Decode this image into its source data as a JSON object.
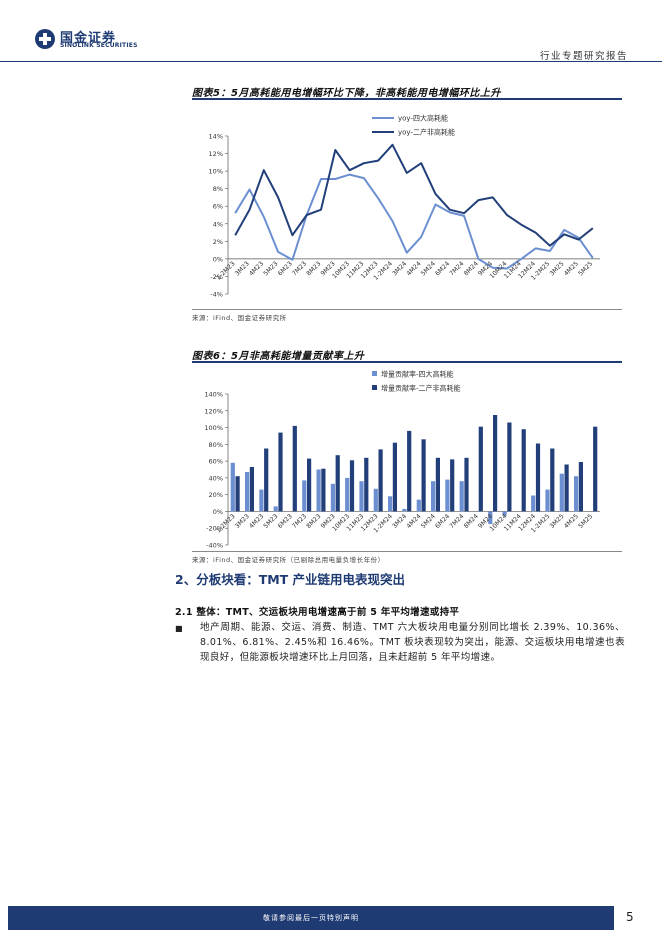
{
  "header": {
    "brand_cn": "国金证券",
    "brand_en": "SINOLINK SECURITIES",
    "report_type": "行业专题研究报告"
  },
  "figure5": {
    "title": "图表5：5月高耗能用电增幅环比下降，非高耗能用电增幅环比上升",
    "source": "来源：iFind、国金证券研究所"
  },
  "figure6": {
    "title": "图表6：5月非高耗能增量贡献率上升",
    "source": "来源：iFind、国金证券研究所（已剔除总用电量负增长年份）"
  },
  "chart_data": [
    {
      "type": "line",
      "categories": [
        "1-2M23",
        "3M23",
        "4M23",
        "5M23",
        "6M23",
        "7M23",
        "8M23",
        "9M23",
        "10M23",
        "11M23",
        "12M23",
        "1-2M24",
        "3M24",
        "4M24",
        "5M24",
        "6M24",
        "7M24",
        "8M24",
        "9M24",
        "10M24",
        "11M24",
        "12M24",
        "1-2M25",
        "3M25",
        "4M25",
        "5M25"
      ],
      "series": [
        {
          "name": "yoy-四大高耗能",
          "color": "#6b8fd0",
          "values": [
            5.2,
            7.9,
            4.8,
            0.8,
            -0.1,
            5.0,
            9.1,
            9.1,
            9.6,
            9.2,
            6.9,
            4.3,
            0.7,
            2.5,
            6.2,
            5.3,
            4.9,
            0.0,
            -1.0,
            -1.1,
            0.0,
            1.2,
            0.9,
            3.3,
            2.4,
            0.1
          ]
        },
        {
          "name": "yoy-二产非高耗能",
          "color": "#223f7a",
          "values": [
            2.7,
            5.6,
            10.1,
            7.0,
            2.7,
            5.0,
            5.6,
            12.4,
            10.1,
            10.9,
            11.2,
            13.0,
            9.8,
            10.9,
            7.4,
            5.6,
            5.2,
            6.7,
            7.0,
            5.0,
            3.9,
            3.0,
            1.5,
            2.8,
            2.2,
            3.5
          ]
        }
      ],
      "y_ticks": [
        "14%",
        "12%",
        "10%",
        "8%",
        "6%",
        "4%",
        "2%",
        "0%",
        "-2%",
        "-4%"
      ],
      "ylim": [
        -4,
        14
      ],
      "legend": "top-right"
    },
    {
      "type": "bar",
      "categories": [
        "1-2M23",
        "3M23",
        "4M23",
        "5M23",
        "6M23",
        "7M23",
        "8M23",
        "9M23",
        "10M23",
        "11M23",
        "12M23",
        "1-2M24",
        "3M24",
        "4M24",
        "5M24",
        "6M24",
        "7M24",
        "8M24",
        "9M24",
        "10M24",
        "11M24",
        "12M24",
        "1-2M25",
        "3M25",
        "4M25",
        "5M25"
      ],
      "series": [
        {
          "name": "增量贡献率-四大高耗能",
          "color": "#6b8fd0",
          "values": [
            58,
            47,
            26,
            6,
            0,
            37,
            50,
            33,
            40,
            36,
            27,
            18,
            3,
            14,
            36,
            38,
            36,
            0,
            -15,
            -5,
            0,
            19,
            26,
            45,
            42,
            0
          ]
        },
        {
          "name": "增量贡献率-二产非高耗能",
          "color": "#223f7a",
          "values": [
            42,
            53,
            75,
            94,
            102,
            63,
            51,
            67,
            61,
            64,
            74,
            82,
            96,
            86,
            64,
            62,
            64,
            101,
            115,
            106,
            98,
            81,
            75,
            56,
            59,
            101
          ]
        }
      ],
      "y_ticks": [
        "140%",
        "120%",
        "100%",
        "80%",
        "60%",
        "40%",
        "20%",
        "0%",
        "-20%",
        "-40%"
      ],
      "ylim": [
        -40,
        140
      ],
      "legend": "top-right"
    }
  ],
  "section": {
    "title": "2、分板块看：TMT 产业链用电表现突出",
    "subsection": "2.1 整体：TMT、交运板块用电增速高于前 5 年平均增速或持平",
    "bullet": "■",
    "paragraph": "地产周期、能源、交运、消费、制造、TMT 六大板块用电量分别同比增长 2.39%、10.36%、8.01%、6.81%、2.45%和 16.46%。TMT 板块表现较为突出，能源、交运板块用电增速也表现良好，但能源板块增速环比上月回落，且未赶超前 5 年平均增速。"
  },
  "footer": {
    "disclaimer": "敬请参阅最后一页特别声明",
    "page_number": "5"
  }
}
